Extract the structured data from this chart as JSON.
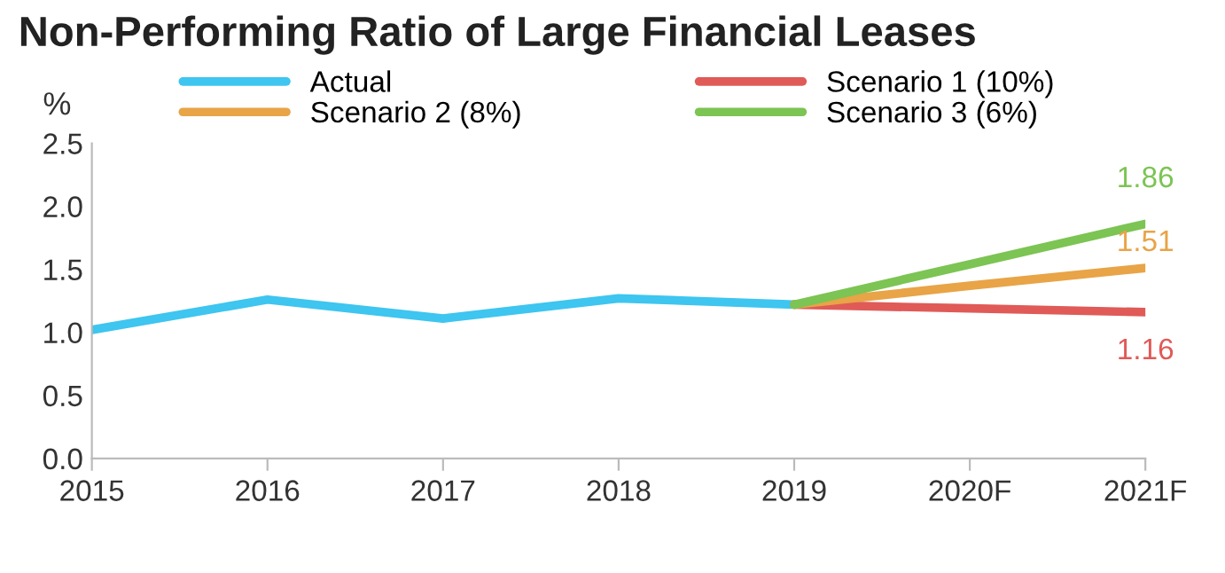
{
  "chart_data": {
    "type": "line",
    "title": "Non-Performing Ratio of Large Financial Leases",
    "ylabel": "%",
    "categories": [
      "2015",
      "2016",
      "2017",
      "2018",
      "2019",
      "2020F",
      "2021F"
    ],
    "series": [
      {
        "name": "Actual",
        "color": "#3ec5f0",
        "values": [
          1.02,
          1.26,
          1.11,
          1.27,
          1.22,
          null,
          null
        ]
      },
      {
        "name": "Scenario 1 (10%)",
        "color": "#e05a57",
        "values": [
          null,
          null,
          null,
          null,
          1.22,
          1.19,
          1.16
        ],
        "value_labels": [
          null,
          null,
          null,
          null,
          null,
          null,
          "1.16"
        ]
      },
      {
        "name": "Scenario 2 (8%)",
        "color": "#e8a447",
        "values": [
          null,
          null,
          null,
          null,
          1.22,
          1.37,
          1.51
        ],
        "value_labels": [
          null,
          null,
          null,
          null,
          null,
          null,
          "1.51"
        ]
      },
      {
        "name": "Scenario 3 (6%)",
        "color": "#7cc453",
        "values": [
          null,
          null,
          null,
          null,
          1.22,
          1.54,
          1.86
        ],
        "value_labels": [
          null,
          null,
          null,
          null,
          null,
          null,
          "1.86"
        ]
      }
    ],
    "ylim": [
      0,
      2.5
    ],
    "yticks": [
      {
        "value": 0,
        "label": "0.0"
      },
      0.5,
      {
        "value": 1,
        "label": "1.0"
      },
      1.5,
      {
        "value": 2,
        "label": "2.0"
      },
      2.5
    ],
    "grid": false,
    "legend": "top",
    "marker": "none",
    "line_style": "solid"
  }
}
